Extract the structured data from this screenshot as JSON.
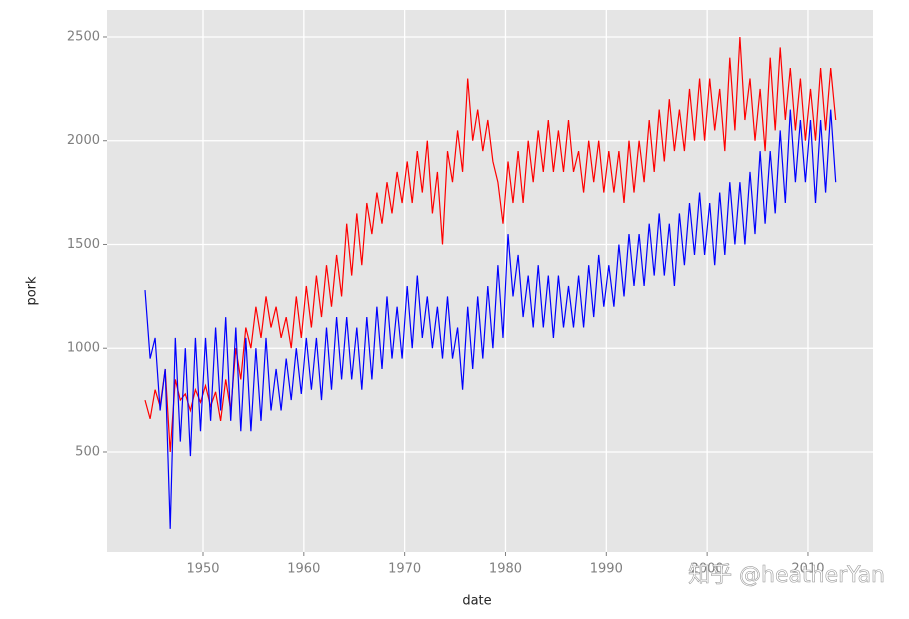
{
  "chart_data": {
    "type": "line",
    "xlabel": "date",
    "ylabel": "pork",
    "watermark": "知乎 @heatherYan",
    "x": [
      1944.25,
      1944.75,
      1945.25,
      1945.75,
      1946.25,
      1946.75,
      1947.25,
      1947.75,
      1948.25,
      1948.75,
      1949.25,
      1949.75,
      1950.25,
      1950.75,
      1951.25,
      1951.75,
      1952.25,
      1952.75,
      1953.25,
      1953.75,
      1954.25,
      1954.75,
      1955.25,
      1955.75,
      1956.25,
      1956.75,
      1957.25,
      1957.75,
      1958.25,
      1958.75,
      1959.25,
      1959.75,
      1960.25,
      1960.75,
      1961.25,
      1961.75,
      1962.25,
      1962.75,
      1963.25,
      1963.75,
      1964.25,
      1964.75,
      1965.25,
      1965.75,
      1966.25,
      1966.75,
      1967.25,
      1967.75,
      1968.25,
      1968.75,
      1969.25,
      1969.75,
      1970.25,
      1970.75,
      1971.25,
      1971.75,
      1972.25,
      1972.75,
      1973.25,
      1973.75,
      1974.25,
      1974.75,
      1975.25,
      1975.75,
      1976.25,
      1976.75,
      1977.25,
      1977.75,
      1978.25,
      1978.75,
      1979.25,
      1979.75,
      1980.25,
      1980.75,
      1981.25,
      1981.75,
      1982.25,
      1982.75,
      1983.25,
      1983.75,
      1984.25,
      1984.75,
      1985.25,
      1985.75,
      1986.25,
      1986.75,
      1987.25,
      1987.75,
      1988.25,
      1988.75,
      1989.25,
      1989.75,
      1990.25,
      1990.75,
      1991.25,
      1991.75,
      1992.25,
      1992.75,
      1993.25,
      1993.75,
      1994.25,
      1994.75,
      1995.25,
      1995.75,
      1996.25,
      1996.75,
      1997.25,
      1997.75,
      1998.25,
      1998.75,
      1999.25,
      1999.75,
      2000.25,
      2000.75,
      2001.25,
      2001.75,
      2002.25,
      2002.75,
      2003.25,
      2003.75,
      2004.25,
      2004.75,
      2005.25,
      2005.75,
      2006.25,
      2006.75,
      2007.25,
      2007.75,
      2008.25,
      2008.75,
      2009.25,
      2009.75,
      2010.25,
      2010.75,
      2011.25,
      2011.75,
      2012.25,
      2012.75
    ],
    "series": [
      {
        "color": "#ff0000",
        "values": [
          750,
          660,
          800,
          720,
          900,
          500,
          850,
          750,
          780,
          700,
          800,
          740,
          820,
          720,
          790,
          650,
          850,
          700,
          1000,
          850,
          1100,
          1000,
          1200,
          1050,
          1250,
          1100,
          1200,
          1050,
          1150,
          1000,
          1250,
          1050,
          1300,
          1100,
          1350,
          1150,
          1400,
          1200,
          1450,
          1250,
          1600,
          1350,
          1650,
          1400,
          1700,
          1550,
          1750,
          1600,
          1800,
          1650,
          1850,
          1700,
          1900,
          1700,
          1950,
          1750,
          2000,
          1650,
          1850,
          1500,
          1950,
          1800,
          2050,
          1850,
          2300,
          2000,
          2150,
          1950,
          2100,
          1900,
          1800,
          1600,
          1900,
          1700,
          1950,
          1700,
          2000,
          1800,
          2050,
          1850,
          2100,
          1850,
          2050,
          1850,
          2100,
          1850,
          1950,
          1750,
          2000,
          1800,
          2000,
          1750,
          1950,
          1750,
          1950,
          1700,
          2000,
          1750,
          2000,
          1800,
          2100,
          1850,
          2150,
          1900,
          2200,
          1950,
          2150,
          1950,
          2250,
          2000,
          2300,
          2000,
          2300,
          2050,
          2250,
          1950,
          2400,
          2050,
          2500,
          2100,
          2300,
          2000,
          2250,
          1950,
          2400,
          2050,
          2450,
          2100,
          2350,
          2050,
          2300,
          2000,
          2250,
          2000,
          2350,
          2050,
          2350,
          2100
        ]
      },
      {
        "color": "#0000ff",
        "values": [
          1280,
          950,
          1050,
          700,
          900,
          130,
          1050,
          550,
          1000,
          480,
          1050,
          600,
          1050,
          650,
          1100,
          700,
          1150,
          650,
          1100,
          600,
          1050,
          600,
          1000,
          650,
          1050,
          700,
          900,
          700,
          950,
          750,
          1000,
          780,
          1050,
          800,
          1050,
          750,
          1100,
          800,
          1150,
          850,
          1150,
          850,
          1100,
          800,
          1150,
          850,
          1200,
          900,
          1250,
          950,
          1200,
          950,
          1300,
          1000,
          1350,
          1050,
          1250,
          1000,
          1200,
          950,
          1250,
          950,
          1100,
          800,
          1200,
          900,
          1250,
          950,
          1300,
          1000,
          1400,
          1050,
          1550,
          1250,
          1450,
          1150,
          1350,
          1100,
          1400,
          1100,
          1350,
          1050,
          1350,
          1100,
          1300,
          1100,
          1350,
          1100,
          1400,
          1150,
          1450,
          1200,
          1400,
          1200,
          1500,
          1250,
          1550,
          1300,
          1550,
          1300,
          1600,
          1350,
          1650,
          1350,
          1600,
          1300,
          1650,
          1400,
          1700,
          1450,
          1750,
          1450,
          1700,
          1400,
          1750,
          1450,
          1800,
          1500,
          1800,
          1500,
          1850,
          1550,
          1950,
          1600,
          1950,
          1650,
          2050,
          1700,
          2150,
          1800,
          2100,
          1800,
          2100,
          1700,
          2100,
          1750,
          2150,
          1800
        ]
      }
    ],
    "xlim": [
      1940.48,
      2016.45
    ],
    "xticks": [
      1950,
      1960,
      1970,
      1980,
      1990,
      2000,
      2010
    ],
    "ylim": [
      18,
      2630
    ],
    "yticks": [
      500,
      1000,
      1500,
      2000,
      2500
    ],
    "grid": true
  }
}
